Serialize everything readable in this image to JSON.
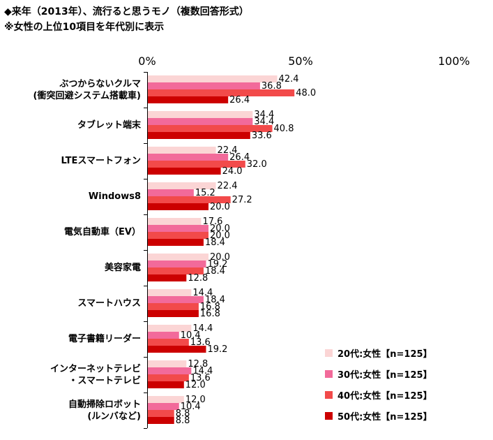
{
  "title": "◆来年（2013年）、流行ると思うモノ（複数回答形式）",
  "subtitle": "※女性の上位10項目を年代別に表示",
  "chart_data": {
    "type": "bar",
    "orientation": "horizontal",
    "xlim": [
      0,
      100
    ],
    "tick_labels": [
      "0%",
      "50%",
      "100%"
    ],
    "categories": [
      [
        "ぶつからないクルマ",
        "(衝突回避システム搭載車)"
      ],
      [
        "タブレット端末"
      ],
      [
        "LTEスマートフォン"
      ],
      [
        "Windows8"
      ],
      [
        "電気自動車（EV）"
      ],
      [
        "美容家電"
      ],
      [
        "スマートハウス"
      ],
      [
        "電子書籍リーダー"
      ],
      [
        "インターネットテレビ",
        "・スマートテレビ"
      ],
      [
        "自動掃除ロボット",
        "(ルンバなど)"
      ]
    ],
    "series": [
      {
        "name": "20代:女性【n=125】",
        "color": "#fbd5d5",
        "values": [
          42.4,
          34.4,
          22.4,
          22.4,
          17.6,
          20.0,
          14.4,
          14.4,
          12.8,
          12.0
        ]
      },
      {
        "name": "30代:女性【n=125】",
        "color": "#f26a9a",
        "values": [
          36.8,
          34.4,
          26.4,
          15.2,
          20.0,
          19.2,
          18.4,
          10.4,
          14.4,
          10.4
        ]
      },
      {
        "name": "40代:女性【n=125】",
        "color": "#f24a4a",
        "values": [
          48.0,
          40.8,
          32.0,
          27.2,
          20.0,
          18.4,
          16.8,
          13.6,
          13.6,
          8.8
        ]
      },
      {
        "name": "50代:女性【n=125】",
        "color": "#cc0000",
        "values": [
          26.4,
          33.6,
          24.0,
          20.0,
          18.4,
          12.8,
          16.8,
          19.2,
          12.0,
          8.8
        ]
      }
    ]
  }
}
